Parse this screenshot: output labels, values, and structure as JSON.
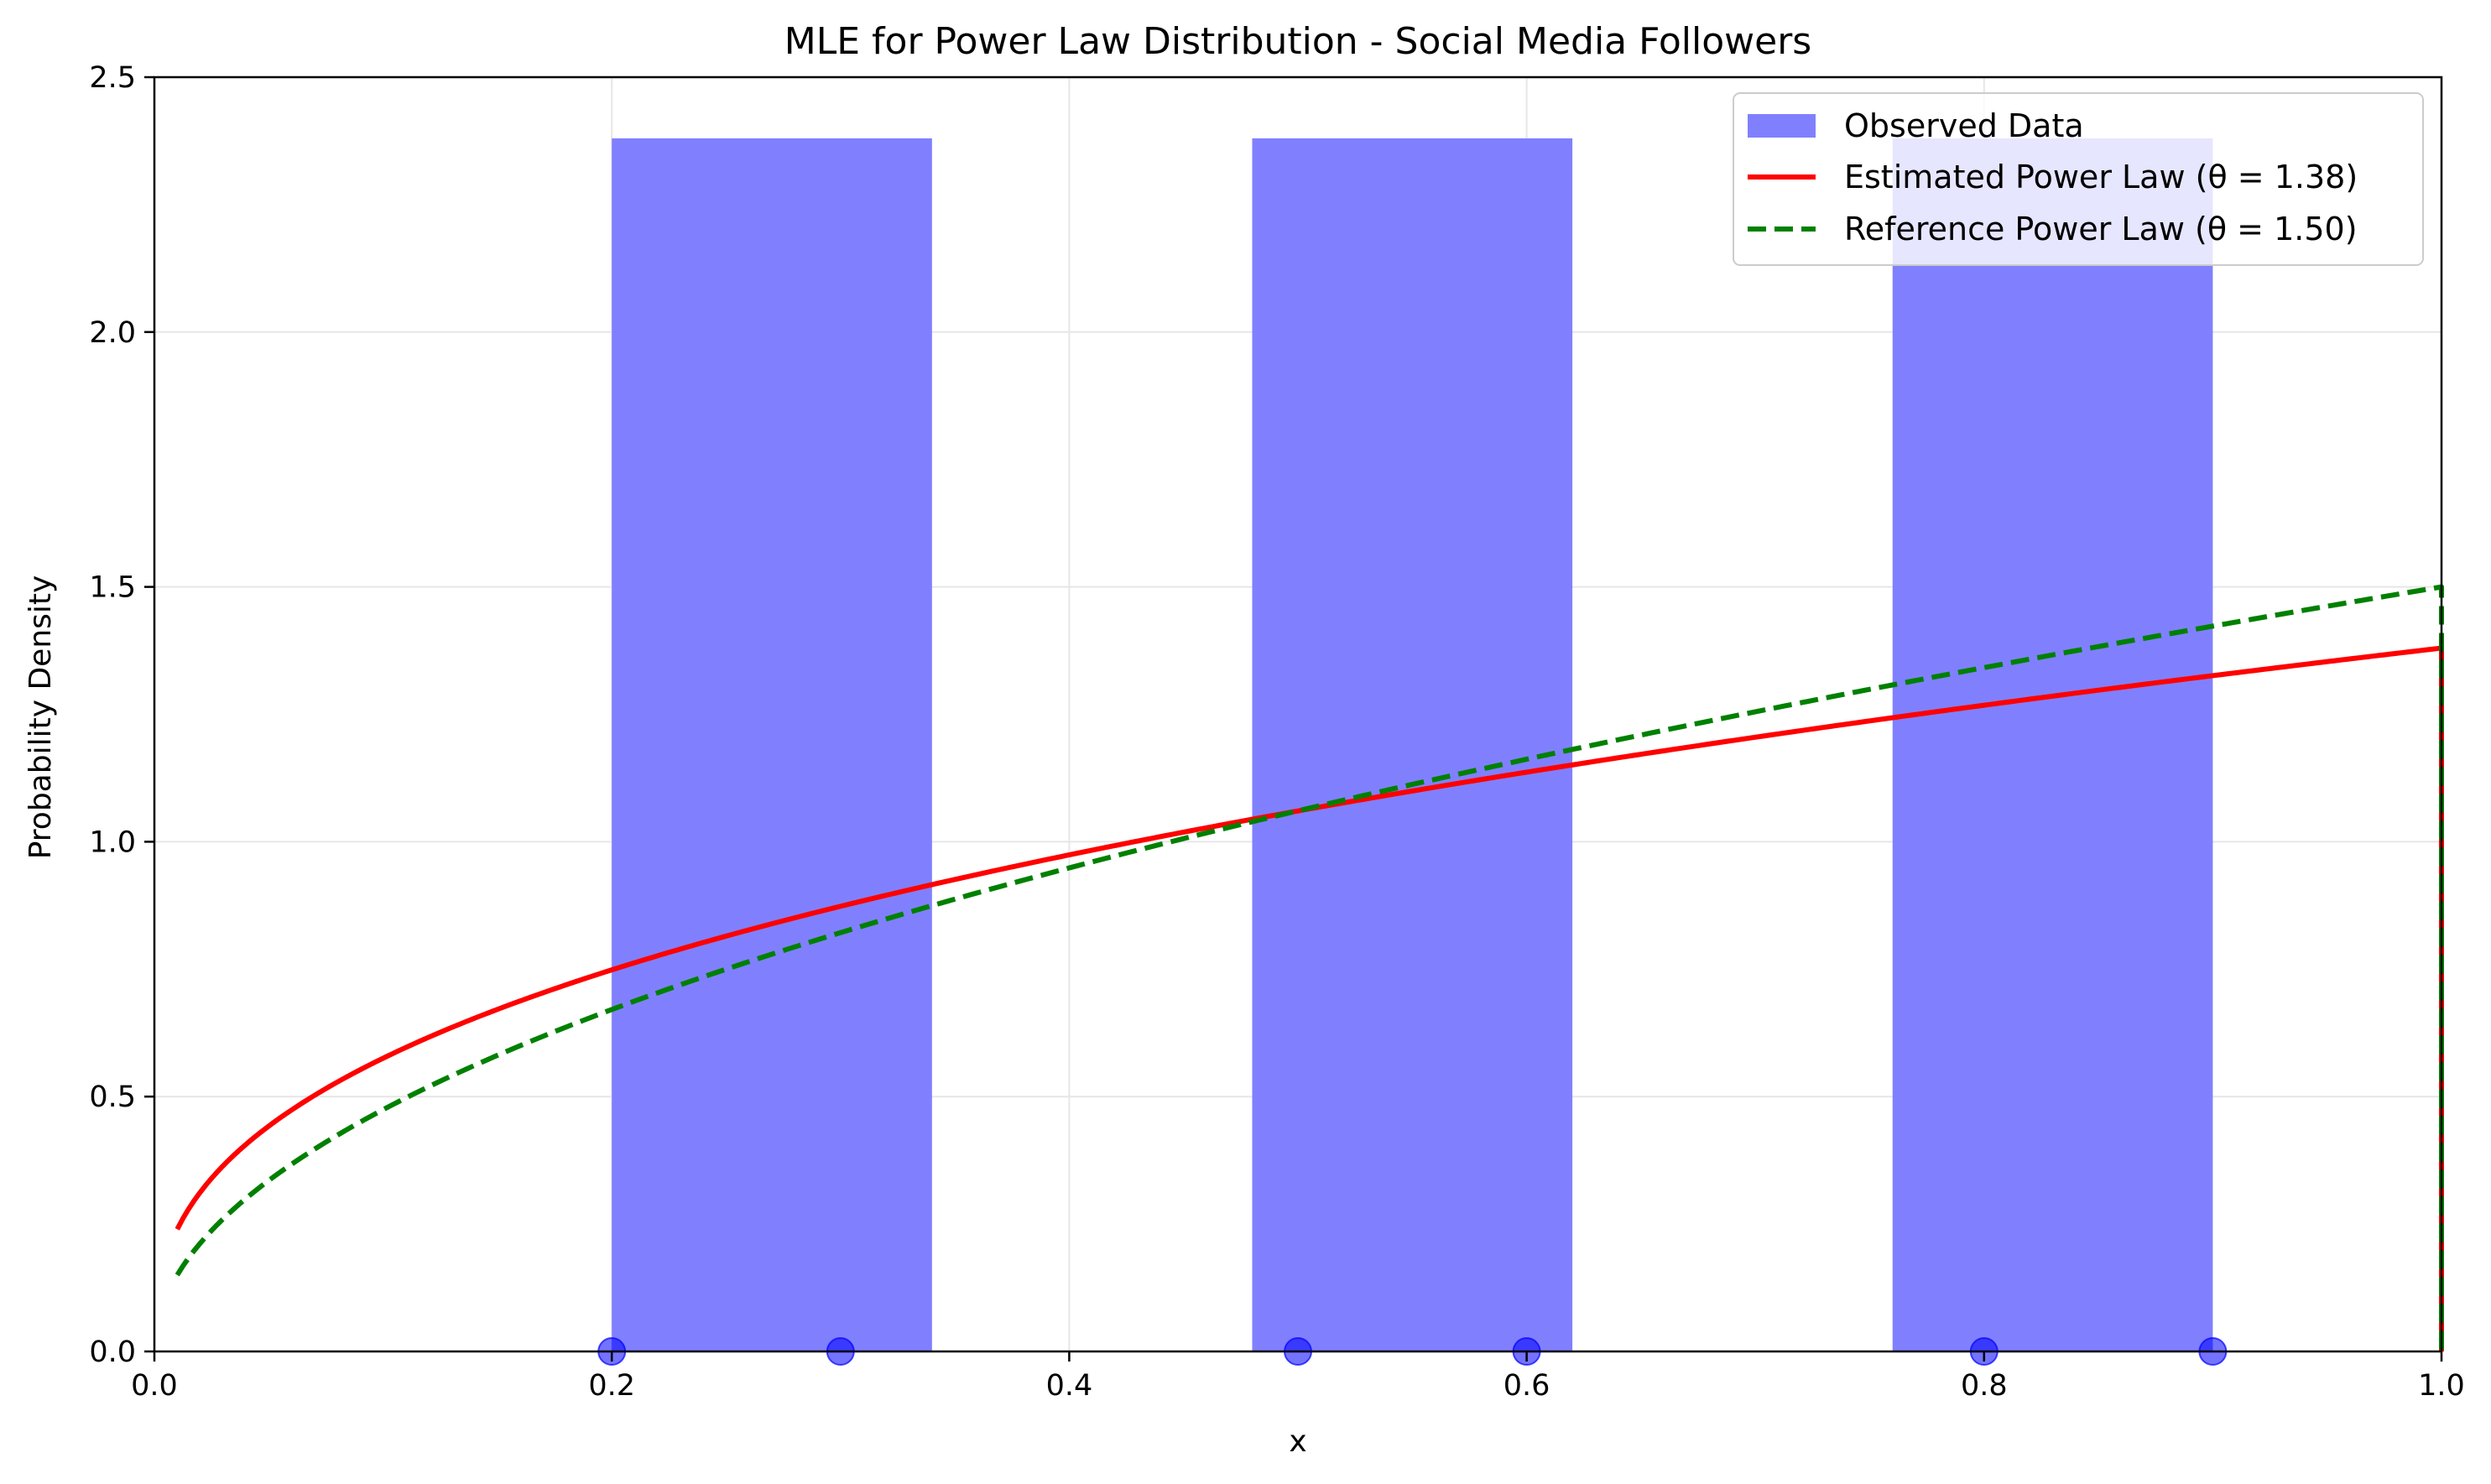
{
  "chart_data": {
    "type": "bar",
    "title": "MLE for Power Law Distribution - Social Media Followers",
    "xlabel": "x",
    "ylabel": "Probability Density",
    "xlim": [
      0.0,
      1.0
    ],
    "ylim": [
      0.0,
      2.5
    ],
    "xticks": [
      "0.0",
      "0.2",
      "0.4",
      "0.6",
      "0.8",
      "1.0"
    ],
    "yticks": [
      "0.0",
      "0.5",
      "1.0",
      "1.5",
      "2.0",
      "2.5"
    ],
    "grid": true,
    "legend_position": "top-right",
    "bars": {
      "name": "Observed Data",
      "color": "#8080ff",
      "bins": [
        {
          "x0": 0.2,
          "x1": 0.34,
          "value": 2.38
        },
        {
          "x0": 0.34,
          "x1": 0.48,
          "value": 0.0
        },
        {
          "x0": 0.48,
          "x1": 0.62,
          "value": 2.38
        },
        {
          "x0": 0.62,
          "x1": 0.76,
          "value": 0.0
        },
        {
          "x0": 0.76,
          "x1": 0.9,
          "value": 2.38
        }
      ]
    },
    "points": {
      "color": "#0000ff",
      "x": [
        0.2,
        0.3,
        0.5,
        0.6,
        0.8,
        0.9
      ],
      "y": [
        0,
        0,
        0,
        0,
        0,
        0
      ]
    },
    "series": [
      {
        "name": "Estimated Power Law (θ = 1.38)",
        "theta": 1.38,
        "color": "#ff0000",
        "style": "solid",
        "x_range": [
          0.01,
          1.0
        ]
      },
      {
        "name": "Reference Power Law (θ = 1.50)",
        "theta": 1.5,
        "color": "#008000",
        "style": "dashed",
        "x_range": [
          0.01,
          1.0
        ]
      }
    ]
  }
}
